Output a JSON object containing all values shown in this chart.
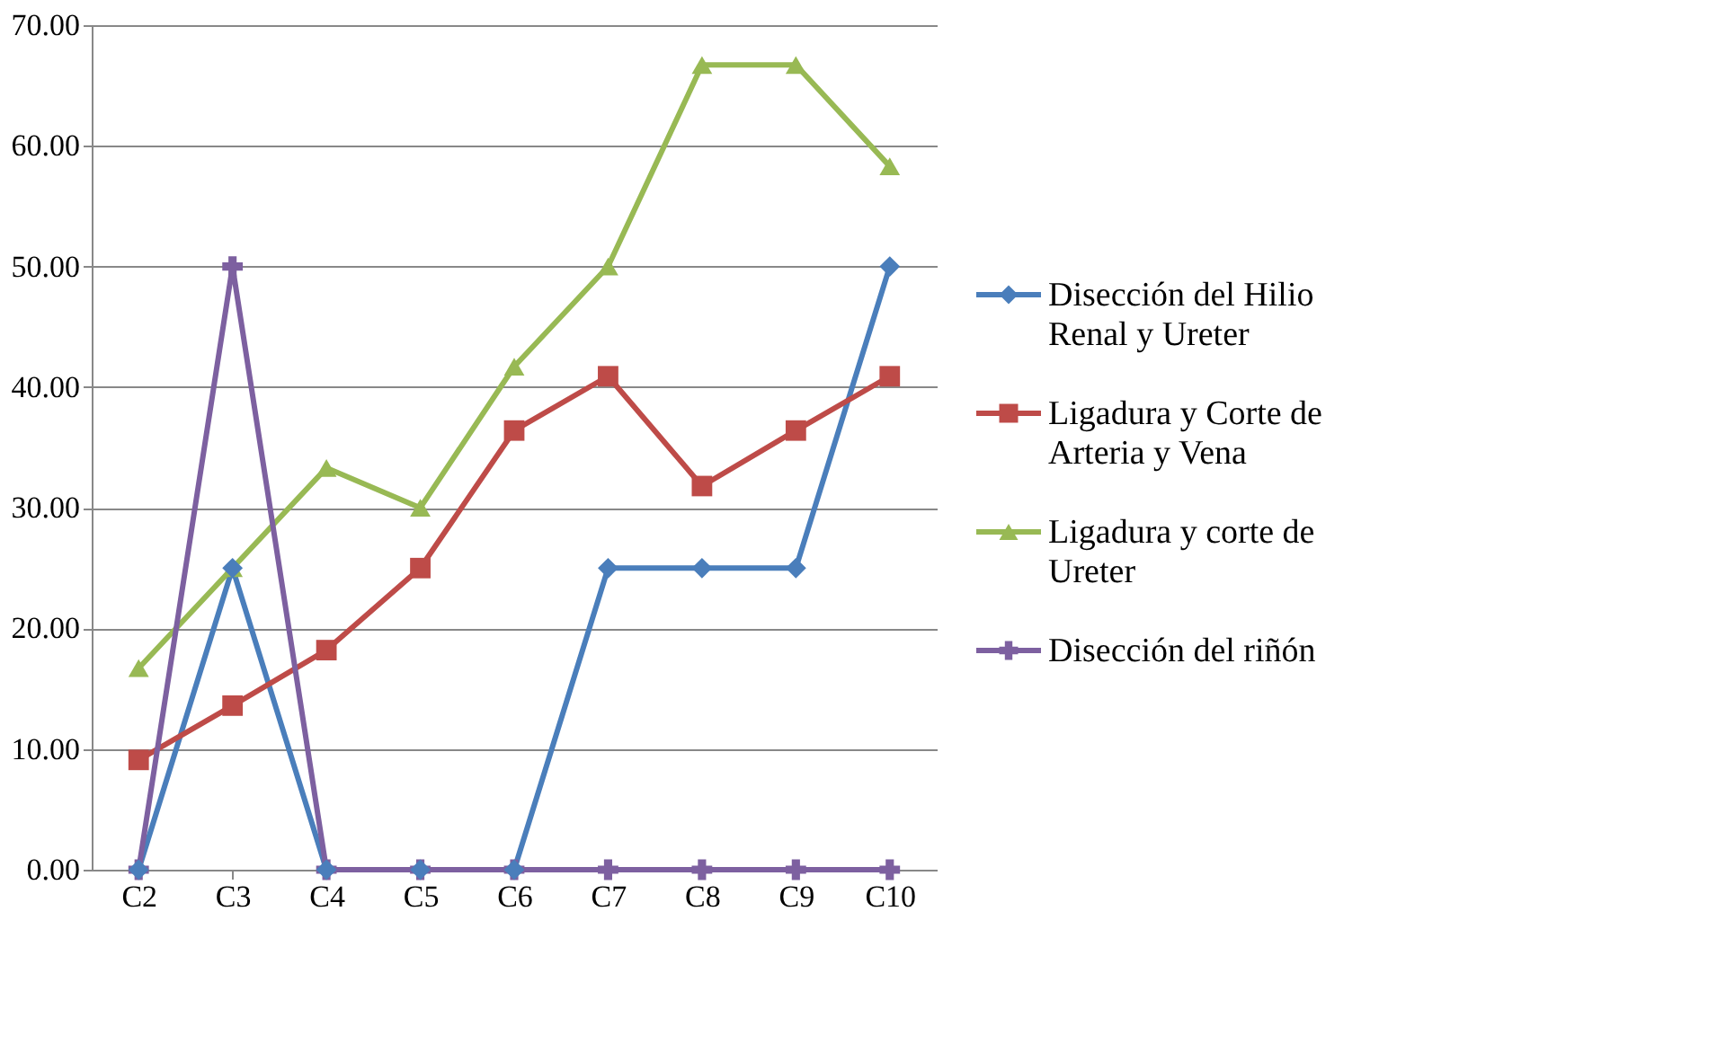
{
  "chart_data": {
    "type": "line",
    "categories": [
      "C2",
      "C3",
      "C4",
      "C5",
      "C6",
      "C7",
      "C8",
      "C9",
      "C10"
    ],
    "series": [
      {
        "name": "Disección del Hilio Renal y Ureter",
        "color": "#4a7ebb",
        "marker": "diamond",
        "values": [
          0,
          25,
          0,
          0,
          0,
          25,
          25,
          25,
          50
        ]
      },
      {
        "name": "Ligadura y Corte de Arteria y Vena",
        "color": "#be4b48",
        "marker": "square",
        "values": [
          9.1,
          13.6,
          18.2,
          25,
          36.4,
          40.9,
          31.8,
          36.4,
          40.9
        ]
      },
      {
        "name": "Ligadura y corte de Ureter",
        "color": "#98b954",
        "marker": "triangle",
        "values": [
          16.7,
          25,
          33.3,
          30,
          41.7,
          50,
          66.7,
          66.7,
          58.3
        ]
      },
      {
        "name": "Disección del riñón",
        "color": "#7d60a0",
        "marker": "cross",
        "values": [
          0,
          50,
          0,
          0,
          0,
          0,
          0,
          0,
          0
        ]
      }
    ],
    "ylim": [
      0,
      70
    ],
    "yticks": [
      {
        "value": 0,
        "label": "0.00"
      },
      {
        "value": 10,
        "label": "10.00"
      },
      {
        "value": 20,
        "label": "20.00"
      },
      {
        "value": 30,
        "label": "30.00"
      },
      {
        "value": 40,
        "label": "40.00"
      },
      {
        "value": 50,
        "label": "50.00"
      },
      {
        "value": 60,
        "label": "60.00"
      },
      {
        "value": 70,
        "label": "70.00"
      }
    ],
    "grid": "y",
    "legend": "right",
    "line_style": "solid"
  }
}
